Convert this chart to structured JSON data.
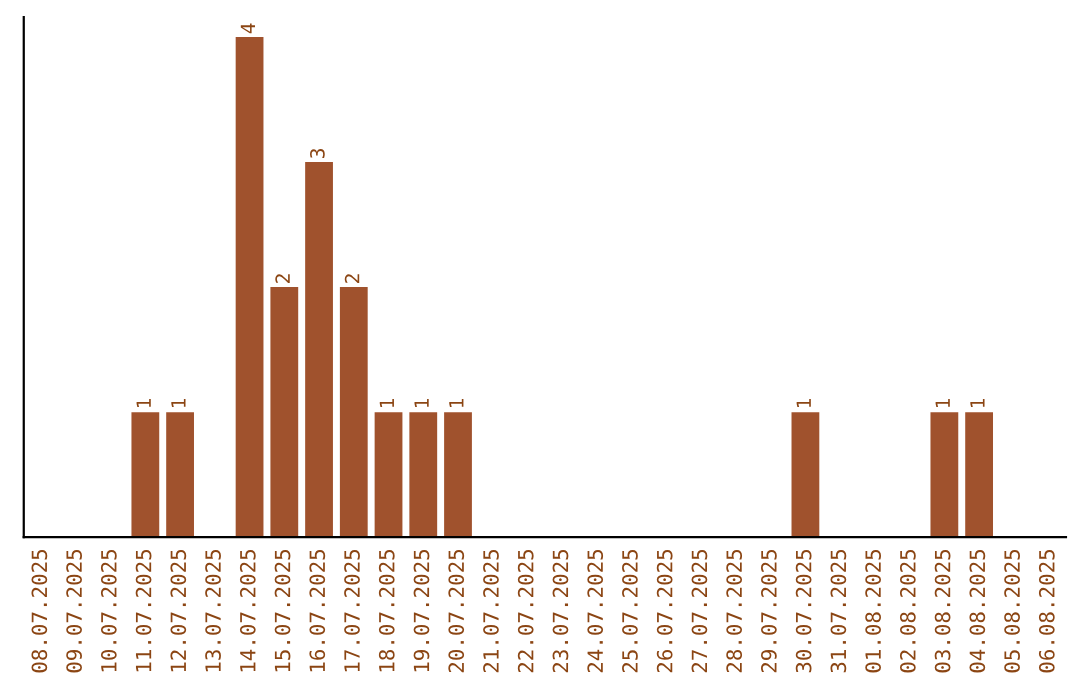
{
  "chart_data": {
    "type": "bar",
    "categories": [
      "08.07.2025",
      "09.07.2025",
      "10.07.2025",
      "11.07.2025",
      "12.07.2025",
      "13.07.2025",
      "14.07.2025",
      "15.07.2025",
      "16.07.2025",
      "17.07.2025",
      "18.07.2025",
      "19.07.2025",
      "20.07.2025",
      "21.07.2025",
      "22.07.2025",
      "23.07.2025",
      "24.07.2025",
      "25.07.2025",
      "26.07.2025",
      "27.07.2025",
      "28.07.2025",
      "29.07.2025",
      "30.07.2025",
      "31.07.2025",
      "01.08.2025",
      "02.08.2025",
      "03.08.2025",
      "04.08.2025",
      "05.08.2025",
      "06.08.2025"
    ],
    "values": [
      0,
      0,
      0,
      1,
      1,
      0,
      4,
      2,
      3,
      2,
      1,
      1,
      1,
      0,
      0,
      0,
      0,
      0,
      0,
      0,
      0,
      0,
      1,
      0,
      0,
      0,
      1,
      1,
      0,
      0
    ],
    "value_labels": [
      null,
      null,
      null,
      "1",
      "1",
      null,
      "4",
      "2",
      "3",
      "2",
      "1",
      "1",
      "1",
      null,
      null,
      null,
      null,
      null,
      null,
      null,
      null,
      null,
      "1",
      null,
      null,
      null,
      "1",
      "1",
      null,
      null
    ],
    "color": "#a0522d",
    "tick_labels": "x",
    "grid": false,
    "legend": false
  }
}
